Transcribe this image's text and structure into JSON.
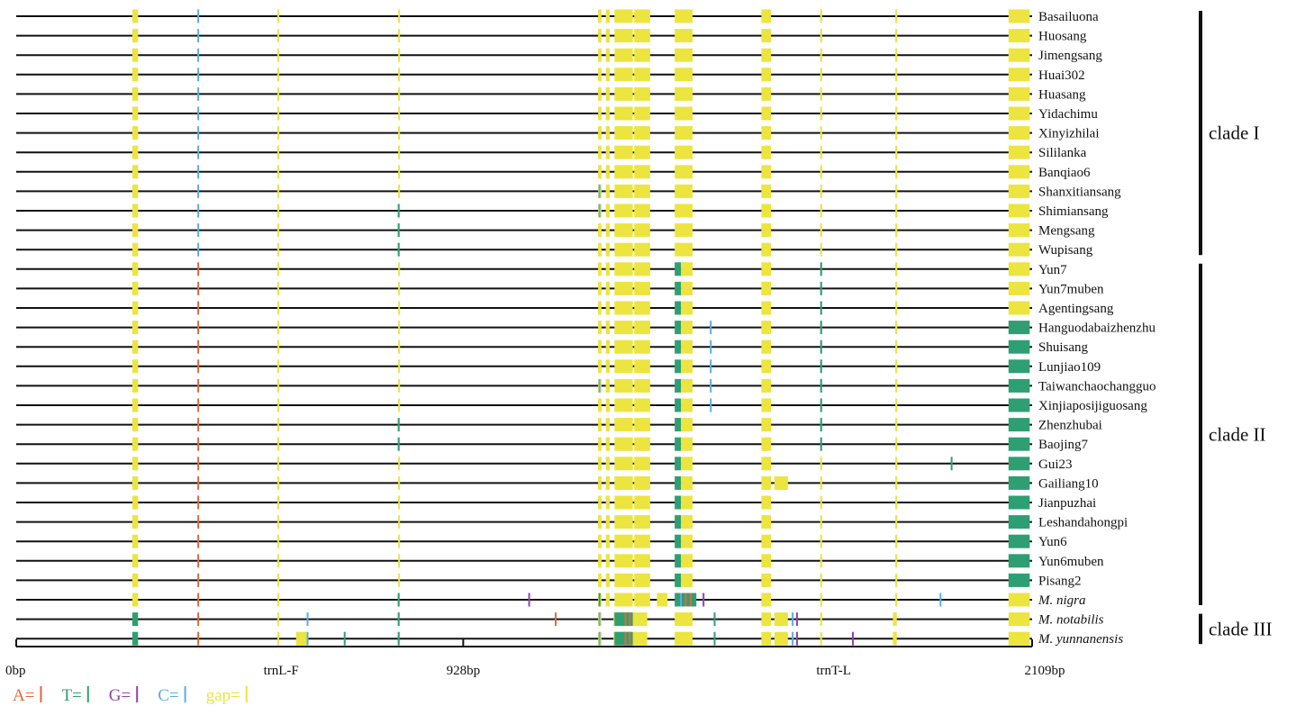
{
  "chart_data": {
    "type": "alignment",
    "units": "bp",
    "total_length": 2109,
    "axis": {
      "ticks": [
        {
          "label": "0bp",
          "bp": 0
        },
        {
          "label": "trnL-F",
          "bp": 550
        },
        {
          "label": "928bp",
          "bp": 928
        },
        {
          "label": "trnT-L",
          "bp": 1697
        },
        {
          "label": "2109bp",
          "bp": 2109
        }
      ],
      "label_bp": [
        {
          "bp": 550
        },
        {
          "bp": 1697
        }
      ]
    },
    "colors": {
      "A": "#e06a3a",
      "T": "#2e9f73",
      "G": "#8e44a0",
      "C": "#5aaee0",
      "gap": "#ece43f"
    },
    "legend": [
      {
        "key": "A",
        "label": "A="
      },
      {
        "key": "T",
        "label": "T="
      },
      {
        "key": "G",
        "label": "G="
      },
      {
        "key": "C",
        "label": "C="
      },
      {
        "key": "gap",
        "label": "gap="
      }
    ],
    "accessions": [
      {
        "name": "Basailuona",
        "italic": false
      },
      {
        "name": "Huosang",
        "italic": false
      },
      {
        "name": "Jimengsang",
        "italic": false
      },
      {
        "name": "Huai302",
        "italic": false
      },
      {
        "name": "Huasang",
        "italic": false
      },
      {
        "name": "Yidachimu",
        "italic": false
      },
      {
        "name": "Xinyizhilai",
        "italic": false
      },
      {
        "name": "Sililanka",
        "italic": false
      },
      {
        "name": "Banqiao6",
        "italic": false
      },
      {
        "name": "Shanxitiansang",
        "italic": false
      },
      {
        "name": "Shimiansang",
        "italic": false
      },
      {
        "name": "Mengsang",
        "italic": false
      },
      {
        "name": "Wupisang",
        "italic": false
      },
      {
        "name": "Yun7",
        "italic": false
      },
      {
        "name": "Yun7muben",
        "italic": false
      },
      {
        "name": "Agentingsang",
        "italic": false
      },
      {
        "name": "Hanguodabaizhenzhu",
        "italic": false
      },
      {
        "name": "Shuisang",
        "italic": false
      },
      {
        "name": "Lunjiao109",
        "italic": false
      },
      {
        "name": "Taiwanchaochangguo",
        "italic": false
      },
      {
        "name": "Xinjiaposijiguosang",
        "italic": false
      },
      {
        "name": "Zhenzhubai",
        "italic": false
      },
      {
        "name": "Baojing7",
        "italic": false
      },
      {
        "name": "Gui23",
        "italic": false
      },
      {
        "name": "Gailiang10",
        "italic": false
      },
      {
        "name": "Jianpuzhai",
        "italic": false
      },
      {
        "name": "Leshandahongpi",
        "italic": false
      },
      {
        "name": "Yun6",
        "italic": false
      },
      {
        "name": "Yun6muben",
        "italic": false
      },
      {
        "name": "Pisang2",
        "italic": false
      },
      {
        "name": "M. nigra",
        "italic": true
      },
      {
        "name": "M. notabilis",
        "italic": true
      },
      {
        "name": "M. yunnanensis",
        "italic": true
      }
    ],
    "clades": [
      {
        "label": "clade I",
        "from": 0,
        "to": 12
      },
      {
        "label": "clade II",
        "from": 13,
        "to": 30
      },
      {
        "label": "clade III",
        "from": 31,
        "to": 32
      }
    ],
    "marks": [
      {
        "from": 0,
        "to": 32,
        "start": 542,
        "end": 544,
        "base": "gap"
      },
      {
        "from": 0,
        "to": 32,
        "start": 1208,
        "end": 1215,
        "base": "gap"
      },
      {
        "from": 0,
        "to": 32,
        "start": 1547,
        "end": 1567,
        "base": "gap"
      },
      {
        "from": 0,
        "to": 30,
        "start": 1224,
        "end": 1232,
        "base": "gap"
      },
      {
        "from": 0,
        "to": 30,
        "start": 1242,
        "end": 1280,
        "base": "gap"
      },
      {
        "from": 0,
        "to": 30,
        "start": 1283,
        "end": 1316,
        "base": "gap"
      },
      {
        "from": 31,
        "to": 32,
        "start": 1240,
        "end": 1310,
        "base": "gap"
      },
      {
        "from": 31,
        "to": 32,
        "start": 1242,
        "end": 1280,
        "base": "T"
      },
      {
        "from": 31,
        "to": 32,
        "start": 1263,
        "end": 1266,
        "base": "A"
      },
      {
        "from": 31,
        "to": 32,
        "start": 1272,
        "end": 1275,
        "base": "A"
      },
      {
        "from": 0,
        "to": 30,
        "start": 1825,
        "end": 1829,
        "base": "gap"
      },
      {
        "from": 31,
        "to": 32,
        "start": 1820,
        "end": 1828,
        "base": "gap"
      },
      {
        "from": 0,
        "to": 30,
        "start": 241,
        "end": 253,
        "base": "gap"
      },
      {
        "from": 31,
        "to": 32,
        "start": 241,
        "end": 253,
        "base": "T"
      },
      {
        "from": 0,
        "to": 12,
        "start": 376,
        "end": 379,
        "base": "C"
      },
      {
        "from": 13,
        "to": 32,
        "start": 376,
        "end": 379,
        "base": "A"
      },
      {
        "from": 0,
        "to": 9,
        "start": 793,
        "end": 795,
        "base": "gap"
      },
      {
        "from": 10,
        "to": 12,
        "start": 792,
        "end": 796,
        "base": "T"
      },
      {
        "from": 13,
        "to": 20,
        "start": 793,
        "end": 795,
        "base": "gap"
      },
      {
        "from": 21,
        "to": 22,
        "start": 792,
        "end": 796,
        "base": "T"
      },
      {
        "from": 23,
        "to": 29,
        "start": 793,
        "end": 795,
        "base": "gap"
      },
      {
        "from": 30,
        "to": 32,
        "start": 792,
        "end": 796,
        "base": "T"
      },
      {
        "from": 9,
        "to": 10,
        "start": 1209,
        "end": 1212,
        "base": "C"
      },
      {
        "from": 19,
        "to": 19,
        "start": 1209,
        "end": 1212,
        "base": "C"
      },
      {
        "from": 30,
        "to": 30,
        "start": 1209,
        "end": 1212,
        "base": "T"
      },
      {
        "from": 31,
        "to": 32,
        "start": 1209,
        "end": 1212,
        "base": "C"
      },
      {
        "from": 0,
        "to": 12,
        "start": 1367,
        "end": 1404,
        "base": "gap"
      },
      {
        "from": 13,
        "to": 29,
        "start": 1367,
        "end": 1380,
        "base": "T"
      },
      {
        "from": 13,
        "to": 29,
        "start": 1380,
        "end": 1404,
        "base": "gap"
      },
      {
        "from": 30,
        "to": 30,
        "start": 1367,
        "end": 1412,
        "base": "T"
      },
      {
        "from": 30,
        "to": 30,
        "start": 1378,
        "end": 1381,
        "base": "C"
      },
      {
        "from": 30,
        "to": 30,
        "start": 1388,
        "end": 1391,
        "base": "A"
      },
      {
        "from": 30,
        "to": 30,
        "start": 1398,
        "end": 1401,
        "base": "A"
      },
      {
        "from": 31,
        "to": 32,
        "start": 1367,
        "end": 1404,
        "base": "gap"
      },
      {
        "from": 0,
        "to": 12,
        "start": 1669,
        "end": 1673,
        "base": "gap"
      },
      {
        "from": 13,
        "to": 22,
        "start": 1669,
        "end": 1673,
        "base": "T"
      },
      {
        "from": 23,
        "to": 29,
        "start": 1669,
        "end": 1673,
        "base": "gap"
      },
      {
        "from": 30,
        "to": 32,
        "start": 1669,
        "end": 1673,
        "base": "gap"
      },
      {
        "from": 0,
        "to": 15,
        "start": 2060,
        "end": 2104,
        "base": "gap"
      },
      {
        "from": 16,
        "to": 29,
        "start": 2060,
        "end": 2104,
        "base": "T"
      },
      {
        "from": 30,
        "to": 32,
        "start": 2060,
        "end": 2104,
        "base": "gap"
      },
      {
        "from": 16,
        "to": 20,
        "start": 1440,
        "end": 1443,
        "base": "C"
      },
      {
        "from": 31,
        "to": 32,
        "start": 1448,
        "end": 1451,
        "base": "T"
      },
      {
        "from": 30,
        "to": 30,
        "start": 1425,
        "end": 1428,
        "base": "G"
      },
      {
        "from": 30,
        "to": 30,
        "start": 1330,
        "end": 1352,
        "base": "gap"
      },
      {
        "from": 24,
        "to": 24,
        "start": 1574,
        "end": 1602,
        "base": "gap"
      },
      {
        "from": 31,
        "to": 32,
        "start": 1574,
        "end": 1602,
        "base": "gap"
      },
      {
        "from": 31,
        "to": 32,
        "start": 1610,
        "end": 1613,
        "base": "C"
      },
      {
        "from": 31,
        "to": 32,
        "start": 1619,
        "end": 1622,
        "base": "G"
      },
      {
        "from": 23,
        "to": 23,
        "start": 1940,
        "end": 1943,
        "base": "T"
      },
      {
        "from": 30,
        "to": 30,
        "start": 1917,
        "end": 1920,
        "base": "C"
      },
      {
        "from": 30,
        "to": 30,
        "start": 1063,
        "end": 1066,
        "base": "G"
      },
      {
        "from": 31,
        "to": 31,
        "start": 1118,
        "end": 1121,
        "base": "A"
      },
      {
        "from": 31,
        "to": 32,
        "start": 603,
        "end": 606,
        "base": "C"
      },
      {
        "from": 32,
        "to": 32,
        "start": 581,
        "end": 603,
        "base": "gap"
      },
      {
        "from": 32,
        "to": 32,
        "start": 680,
        "end": 683,
        "base": "T"
      },
      {
        "from": 32,
        "to": 32,
        "start": 1735,
        "end": 1738,
        "base": "G"
      }
    ]
  }
}
